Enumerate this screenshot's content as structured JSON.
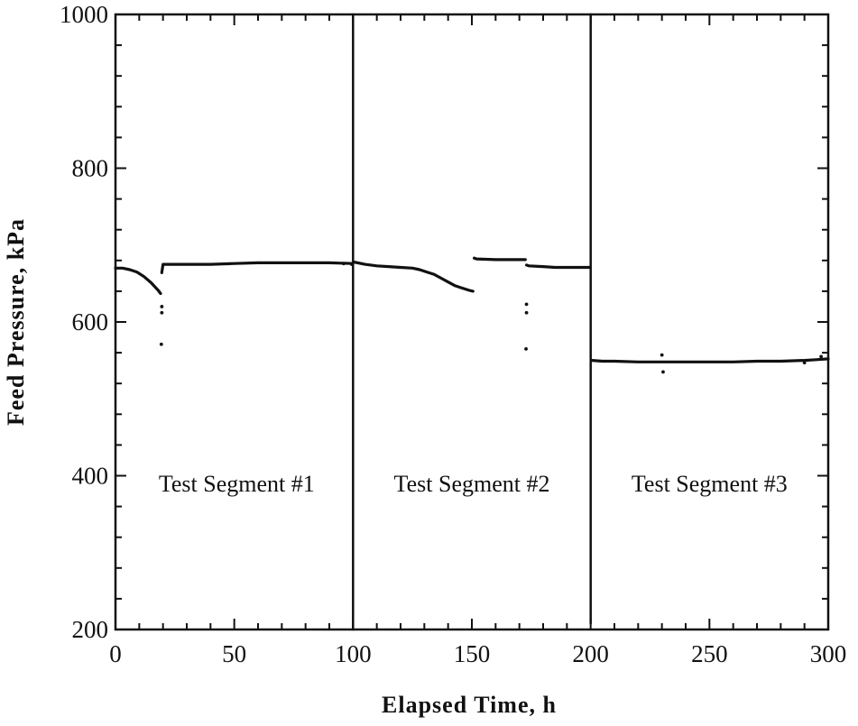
{
  "chart_data": {
    "type": "scatter",
    "xlabel": "Elapsed Time, h",
    "ylabel": "Feed Pressure, kPa",
    "xlim": [
      0,
      300
    ],
    "ylim": [
      200,
      1000
    ],
    "xticks": [
      0,
      50,
      100,
      150,
      200,
      250,
      300
    ],
    "yticks": [
      200,
      400,
      600,
      800,
      1000
    ],
    "xtick_labels": [
      "0",
      "50",
      "100",
      "150",
      "200",
      "250",
      "300"
    ],
    "ytick_labels": [
      "200",
      "400",
      "600",
      "800",
      "1000"
    ],
    "grid": false,
    "segment_boundaries": [
      100,
      200
    ],
    "annotations": [
      {
        "text": "Test Segment #1",
        "x": 51,
        "y": 390
      },
      {
        "text": "Test Segment #2",
        "x": 150,
        "y": 390
      },
      {
        "text": "Test Segment #3",
        "x": 250,
        "y": 390
      }
    ],
    "series": [
      {
        "mode": "line",
        "color": "#111111",
        "segments": [
          {
            "x": [
              0,
              3,
              6,
              9,
              12,
              15,
              18,
              19
            ],
            "y": [
              670,
              670,
              668,
              665,
              659,
              651,
              641,
              637
            ]
          },
          {
            "x": [
              19.5,
              20,
              23,
              30,
              40,
              50,
              60,
              70,
              80,
              90,
              99.8
            ],
            "y": [
              664,
              675,
              675,
              675,
              675,
              676,
              677,
              677,
              677,
              677,
              676
            ]
          },
          {
            "x": [
              100.2,
              105,
              110,
              115,
              120,
              125,
              128,
              131,
              134,
              137,
              140,
              143,
              146,
              149,
              150.5
            ],
            "y": [
              678,
              675,
              673,
              672,
              671,
              670,
              668,
              665,
              662,
              657,
              652,
              647,
              644,
              641,
              640
            ]
          },
          {
            "x": [
              151,
              152,
              160,
              165,
              170,
              172.5
            ],
            "y": [
              683,
              682,
              681,
              681,
              681,
              681
            ]
          },
          {
            "x": [
              173,
              174,
              180,
              185,
              190,
              199.8
            ],
            "y": [
              674,
              673,
              672,
              671,
              671,
              671
            ]
          },
          {
            "x": [
              200.5,
              205,
              210,
              220,
              230,
              240,
              250,
              260,
              270,
              280,
              290,
              295,
              300
            ],
            "y": [
              550,
              549,
              549,
              548,
              548,
              548,
              548,
              548,
              549,
              549,
              550,
              551,
              552
            ]
          }
        ]
      },
      {
        "mode": "markers",
        "color": "#111111",
        "x": [
          19.5,
          19.5,
          19.3,
          173,
          173,
          172.8,
          230,
          230.5,
          290,
          297,
          96,
          99.5
        ],
        "y": [
          620,
          612,
          571,
          623,
          612,
          565,
          557,
          535,
          547,
          555,
          676,
          675
        ]
      },
      {
        "mode": "line",
        "color": "#111111",
        "segments": [
          {
            "x": [
              100,
              100
            ],
            "y": [
              1000,
              200
            ]
          },
          {
            "x": [
              200,
              200
            ],
            "y": [
              1000,
              208
            ]
          }
        ]
      }
    ]
  }
}
